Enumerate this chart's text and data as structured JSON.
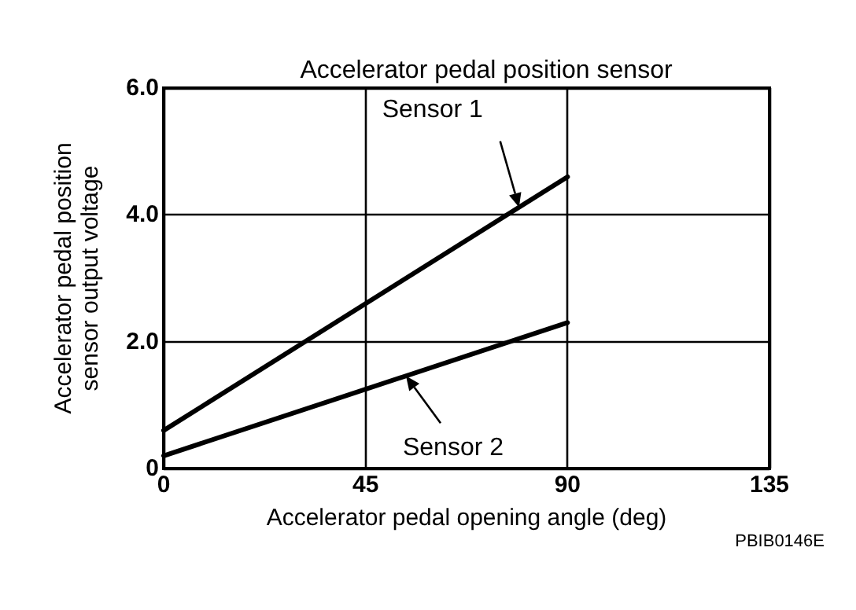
{
  "chart_data": {
    "type": "line",
    "title": "Accelerator pedal position sensor",
    "xlabel": "Accelerator pedal opening angle (deg)",
    "ylabel": "Accelerator pedal position\nsensor output voltage",
    "x": [
      0,
      90
    ],
    "series": [
      {
        "name": "Sensor 1",
        "color": "#000000",
        "values": [
          0.6,
          4.6
        ]
      },
      {
        "name": "Sensor 2",
        "color": "#000000",
        "values": [
          0.2,
          2.3
        ]
      }
    ],
    "xlim": [
      0,
      135
    ],
    "xticks": [
      0,
      45,
      90,
      135
    ],
    "ylim": [
      0,
      6
    ],
    "yticks": [
      0,
      {
        "value": 2,
        "label": "2.0"
      },
      {
        "value": 4,
        "label": "4.0"
      },
      {
        "value": 6,
        "label": "6.0"
      }
    ],
    "grid": true,
    "marker": "none",
    "line_style": "solid",
    "annotations": [
      "PBIB0146E"
    ]
  }
}
